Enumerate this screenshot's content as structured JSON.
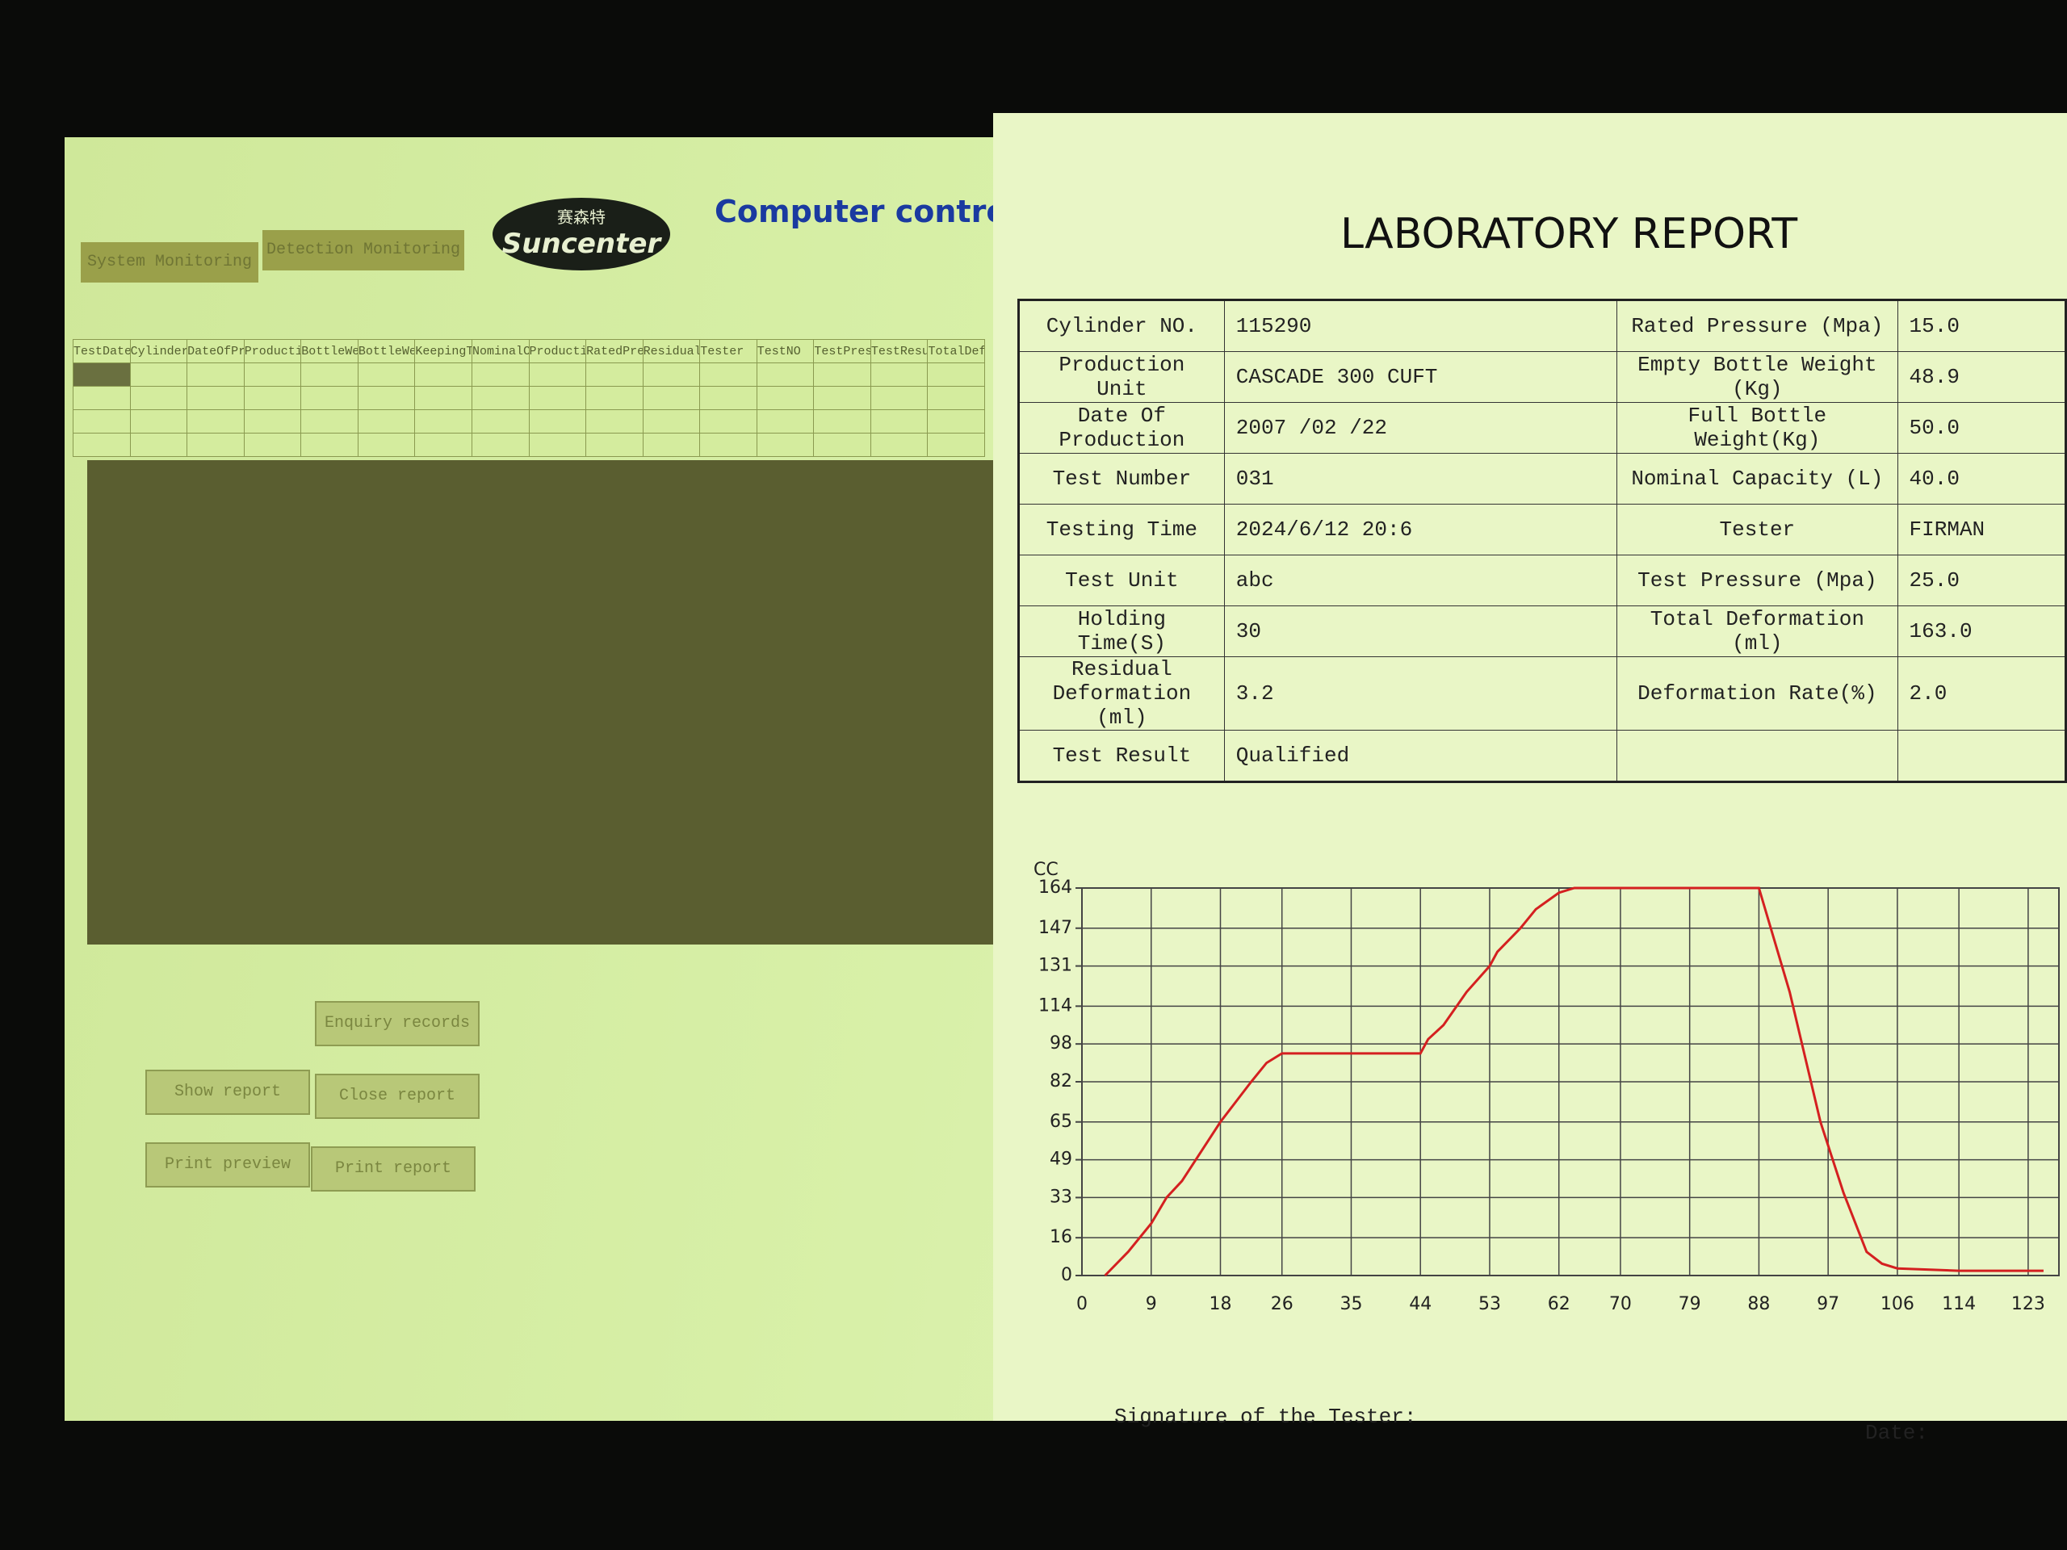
{
  "left_panel": {
    "tabs": [
      "System Monitoring",
      "Detection Monitoring"
    ],
    "logo": {
      "chinese": "赛森特",
      "name": "Suncenter"
    },
    "title": "Computer contro",
    "table": {
      "columns": [
        "TestDate",
        "CylinderNO",
        "DateOfProduction",
        "ProductionUnit",
        "BottleWeight",
        "BottleWeight",
        "KeepingTime",
        "NominalCapacity",
        "ProductionUnit",
        "RatedPressure",
        "ResidualDeform",
        "Tester",
        "TestNO",
        "TestPressure",
        "TestResult",
        "TotalDeform"
      ]
    },
    "buttons": [
      "Enquiry records",
      "Show report",
      "Close report",
      "Print preview",
      "Print report"
    ]
  },
  "report": {
    "title": "LABORATORY REPORT",
    "fields_left": [
      {
        "label": "Cylinder NO.",
        "value": "115290"
      },
      {
        "label": "Production Unit",
        "value": "CASCADE 300 CUFT"
      },
      {
        "label": "Date Of Production",
        "value": "2007 /02 /22"
      },
      {
        "label": "Test Number",
        "value": "031"
      },
      {
        "label": "Testing Time",
        "value": "2024/6/12  20:6"
      },
      {
        "label": "Test Unit",
        "value": "abc"
      },
      {
        "label": "Holding Time(S)",
        "value": "30"
      },
      {
        "label": "Residual Deformation (ml)",
        "value": "3.2"
      },
      {
        "label": "Test Result",
        "value": "Qualified"
      }
    ],
    "fields_right": [
      {
        "label": "Rated Pressure (Mpa)",
        "value": "15.0"
      },
      {
        "label": "Empty Bottle Weight (Kg)",
        "value": "48.9"
      },
      {
        "label": "Full Bottle Weight(Kg)",
        "value": "50.0"
      },
      {
        "label": "Nominal Capacity (L)",
        "value": "40.0"
      },
      {
        "label": "Tester",
        "value": "FIRMAN"
      },
      {
        "label": "Test Pressure (Mpa)",
        "value": "25.0"
      },
      {
        "label": "Total Deformation (ml)",
        "value": "163.0"
      },
      {
        "label": "Deformation Rate(%)",
        "value": "2.0"
      }
    ],
    "chart": {
      "type": "line",
      "y_label": "CC",
      "x": [
        3,
        6,
        9,
        11,
        13,
        18,
        22,
        24,
        26,
        30,
        44,
        45,
        47,
        50,
        53,
        54,
        57,
        59,
        62,
        64,
        88,
        92,
        96,
        99,
        102,
        104,
        106,
        114,
        125
      ],
      "values": [
        0,
        10,
        22,
        33,
        40,
        65,
        82,
        90,
        94,
        94,
        94,
        100,
        106,
        120,
        131,
        137,
        147,
        155,
        162,
        164,
        164,
        120,
        65,
        35,
        10,
        5,
        3,
        2,
        2
      ],
      "color": "#d42020",
      "xlim": [
        0,
        127
      ],
      "ylim": [
        0,
        164
      ],
      "xticks": [
        0,
        9,
        18,
        26,
        35,
        44,
        53,
        62,
        70,
        79,
        88,
        97,
        106,
        114,
        123
      ],
      "yticks": [
        0,
        16,
        33,
        49,
        65,
        82,
        98,
        114,
        131,
        147,
        164
      ],
      "grid": true
    },
    "signature": "Signature of the Tester:",
    "date": "Date:"
  }
}
